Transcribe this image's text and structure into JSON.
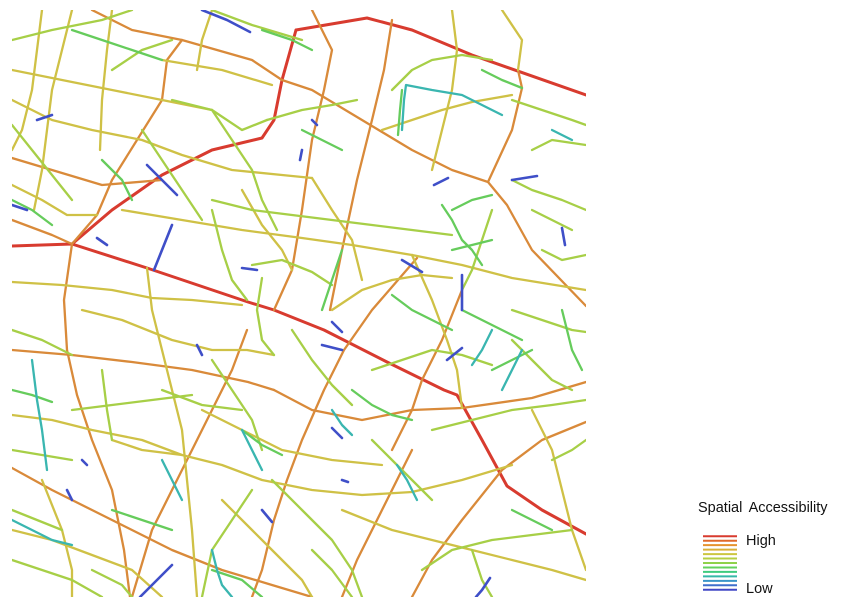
{
  "legend": {
    "title": "Spatial  Accessibility",
    "high_label": "High",
    "low_label": "Low",
    "ramp": [
      "#d83b2f",
      "#e06a2b",
      "#e6932e",
      "#d9b13a",
      "#cdc640",
      "#b5cf43",
      "#8fd24a",
      "#64d25c",
      "#3fcb7e",
      "#35b8a8",
      "#3a95c8",
      "#3f6fcc",
      "#4248c6"
    ]
  },
  "palette": {
    "very_high": "#d83b2f",
    "high": "#d98a3a",
    "med_high": "#cfc146",
    "medium": "#a7cf47",
    "med_low": "#66cc5c",
    "low": "#3ab6b0",
    "very_low": "#3f4fc8"
  }
}
